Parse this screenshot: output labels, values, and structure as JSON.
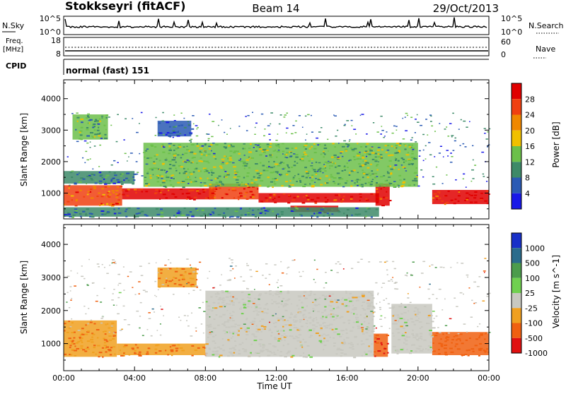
{
  "header": {
    "station": "Stokkseyri (fitACF)",
    "beam": "Beam 14",
    "date": "29/Oct/2013"
  },
  "strips": {
    "nsky_label": "N.Sky",
    "nsky_ticks": [
      "10^5",
      "10^0"
    ],
    "nsearch_label": "N.Search",
    "nsearch_ticks": [
      "10^5",
      "10^0"
    ],
    "freq_label": "Freq.",
    "freq_unit": "[MHz]",
    "freq_ticks": [
      "18",
      "8"
    ],
    "nave_label": "Nave",
    "nave_ticks": [
      "60",
      "0"
    ],
    "cpid_label": "CPID",
    "cpid_value": "normal (fast) 151"
  },
  "panels": {
    "power_ylabel": "Slant Range [km]",
    "velocity_ylabel": "Slant Range [km]",
    "xlabel": "Time UT",
    "power_cbar_label": "Power [dB]",
    "velocity_cbar_label": "Velocity [m s^-1]"
  },
  "chart_data": [
    {
      "type": "heatmap",
      "title": "Power",
      "xlabel": "Time UT",
      "ylabel": "Slant Range [km]",
      "x_ticks": [
        "00:00",
        "04:00",
        "08:00",
        "12:00",
        "16:00",
        "20:00",
        "00:00"
      ],
      "x_range_hours": [
        0,
        24
      ],
      "y_ticks": [
        1000,
        2000,
        3000,
        4000
      ],
      "ylim": [
        180,
        4600
      ],
      "colorbar": {
        "label": "Power [dB]",
        "ticks": [
          4,
          8,
          12,
          16,
          20,
          24,
          28
        ],
        "colors": [
          "#1818e8",
          "#2a5ab4",
          "#3d8a68",
          "#6cc04a",
          "#f0c000",
          "#f08800",
          "#f04010",
          "#e00000"
        ]
      },
      "regions": [
        {
          "t0": 0.0,
          "t1": 3.3,
          "r0": 600,
          "r1": 1250,
          "value": 24
        },
        {
          "t0": 3.3,
          "t1": 8.5,
          "r0": 800,
          "r1": 1150,
          "value": 28
        },
        {
          "t0": 8.2,
          "t1": 11.0,
          "r0": 800,
          "r1": 1300,
          "value": 26
        },
        {
          "t0": 11.0,
          "t1": 17.8,
          "r0": 700,
          "r1": 1000,
          "value": 28
        },
        {
          "t0": 12.8,
          "t1": 15.5,
          "r0": 400,
          "r1": 600,
          "value": 28
        },
        {
          "t0": 17.6,
          "t1": 18.4,
          "r0": 600,
          "r1": 1300,
          "value": 28
        },
        {
          "t0": 20.8,
          "t1": 24.0,
          "r0": 650,
          "r1": 1100,
          "value": 28
        },
        {
          "t0": 0.0,
          "t1": 4.0,
          "r0": 1300,
          "r1": 1700,
          "value": 8
        },
        {
          "t0": 4.5,
          "t1": 20.0,
          "r0": 1200,
          "r1": 2600,
          "value": 14
        },
        {
          "t0": 0.5,
          "t1": 2.5,
          "r0": 2700,
          "r1": 3500,
          "value": 12
        },
        {
          "t0": 5.3,
          "t1": 7.2,
          "r0": 2800,
          "r1": 3300,
          "value": 6
        },
        {
          "t0": 0.0,
          "t1": 17.8,
          "r0": 250,
          "r1": 550,
          "value": 8
        }
      ]
    },
    {
      "type": "heatmap",
      "title": "Velocity",
      "xlabel": "Time UT",
      "ylabel": "Slant Range [km]",
      "x_ticks": [
        "00:00",
        "04:00",
        "08:00",
        "12:00",
        "16:00",
        "20:00",
        "00:00"
      ],
      "x_range_hours": [
        0,
        24
      ],
      "y_ticks": [
        1000,
        2000,
        3000,
        4000
      ],
      "ylim": [
        180,
        4600
      ],
      "colorbar": {
        "label": "Velocity [m s^-1]",
        "ticks": [
          1000,
          500,
          100,
          25,
          -25,
          -100,
          -500,
          -1000
        ],
        "colors": [
          "#1830c8",
          "#2a6c8c",
          "#4c9c4c",
          "#70d050",
          "#c8c8c0",
          "#f0a020",
          "#f06010",
          "#e01010"
        ]
      },
      "regions": [
        {
          "t0": 0.0,
          "t1": 3.0,
          "r0": 600,
          "r1": 1700,
          "value": -100
        },
        {
          "t0": 3.0,
          "t1": 8.0,
          "r0": 650,
          "r1": 1000,
          "value": -100
        },
        {
          "t0": 8.0,
          "t1": 17.5,
          "r0": 600,
          "r1": 2600,
          "value": 0
        },
        {
          "t0": 17.5,
          "t1": 18.3,
          "r0": 600,
          "r1": 1300,
          "value": -500
        },
        {
          "t0": 20.8,
          "t1": 24.0,
          "r0": 650,
          "r1": 1350,
          "value": -200
        },
        {
          "t0": 18.5,
          "t1": 20.8,
          "r0": 700,
          "r1": 2200,
          "value": 0
        },
        {
          "t0": 5.3,
          "t1": 7.5,
          "r0": 2700,
          "r1": 3300,
          "value": -100
        }
      ]
    }
  ]
}
